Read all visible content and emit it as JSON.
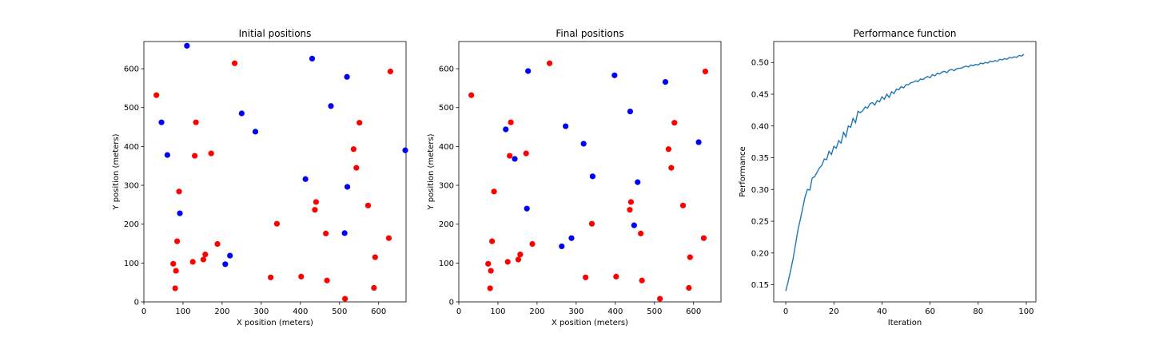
{
  "chart_data": [
    {
      "type": "scatter",
      "title": "Initial positions",
      "xlabel": "X position (meters)",
      "ylabel": "Y position (meters)",
      "xlim": [
        0,
        670
      ],
      "ylim": [
        0,
        670
      ],
      "xticks": [
        0,
        100,
        200,
        300,
        400,
        500,
        600
      ],
      "yticks": [
        0,
        100,
        200,
        300,
        400,
        500,
        600
      ],
      "grid": false,
      "series": [
        {
          "color": "#ff0000",
          "points": [
            [
              32,
              532
            ],
            [
              133,
              462
            ],
            [
              130,
              376
            ],
            [
              172,
              382
            ],
            [
              90,
              284
            ],
            [
              85,
              156
            ],
            [
              75,
              98
            ],
            [
              82,
              80
            ],
            [
              80,
              35
            ],
            [
              125,
              103
            ],
            [
              152,
              109
            ],
            [
              157,
              122
            ],
            [
              188,
              149
            ],
            [
              232,
              614
            ],
            [
              340,
              201
            ],
            [
              324,
              63
            ],
            [
              402,
              65
            ],
            [
              437,
              237
            ],
            [
              440,
              257
            ],
            [
              465,
              176
            ],
            [
              468,
              55
            ],
            [
              514,
              8
            ],
            [
              536,
              393
            ],
            [
              543,
              345
            ],
            [
              551,
              461
            ],
            [
              573,
              248
            ],
            [
              588,
              36
            ],
            [
              591,
              115
            ],
            [
              626,
              164
            ],
            [
              630,
              593
            ]
          ]
        },
        {
          "color": "#0000ff",
          "points": [
            [
              110,
              659
            ],
            [
              45,
              462
            ],
            [
              60,
              378
            ],
            [
              92,
              228
            ],
            [
              208,
              97
            ],
            [
              220,
              119
            ],
            [
              250,
              485
            ],
            [
              285,
              438
            ],
            [
              413,
              316
            ],
            [
              430,
              626
            ],
            [
              478,
              504
            ],
            [
              519,
              579
            ],
            [
              520,
              296
            ],
            [
              513,
              177
            ],
            [
              668,
              390
            ]
          ]
        }
      ]
    },
    {
      "type": "scatter",
      "title": "Final positions",
      "xlabel": "X position (meters)",
      "ylabel": "Y position (meters)",
      "xlim": [
        0,
        670
      ],
      "ylim": [
        0,
        670
      ],
      "xticks": [
        0,
        100,
        200,
        300,
        400,
        500,
        600
      ],
      "yticks": [
        0,
        100,
        200,
        300,
        400,
        500,
        600
      ],
      "grid": false,
      "series": [
        {
          "color": "#ff0000",
          "points": [
            [
              32,
              532
            ],
            [
              133,
              462
            ],
            [
              130,
              376
            ],
            [
              172,
              382
            ],
            [
              90,
              284
            ],
            [
              85,
              156
            ],
            [
              75,
              98
            ],
            [
              82,
              80
            ],
            [
              80,
              35
            ],
            [
              125,
              103
            ],
            [
              152,
              109
            ],
            [
              157,
              122
            ],
            [
              188,
              149
            ],
            [
              232,
              614
            ],
            [
              340,
              201
            ],
            [
              324,
              63
            ],
            [
              402,
              65
            ],
            [
              437,
              237
            ],
            [
              440,
              257
            ],
            [
              465,
              176
            ],
            [
              468,
              55
            ],
            [
              514,
              8
            ],
            [
              536,
              393
            ],
            [
              543,
              345
            ],
            [
              551,
              461
            ],
            [
              573,
              248
            ],
            [
              588,
              36
            ],
            [
              591,
              115
            ],
            [
              626,
              164
            ],
            [
              630,
              593
            ]
          ]
        },
        {
          "color": "#0000ff",
          "points": [
            [
              120,
              444
            ],
            [
              143,
              368
            ],
            [
              174,
              240
            ],
            [
              177,
              594
            ],
            [
              263,
              143
            ],
            [
              273,
              452
            ],
            [
              288,
              164
            ],
            [
              319,
              407
            ],
            [
              342,
              323
            ],
            [
              398,
              583
            ],
            [
              438,
              490
            ],
            [
              448,
              197
            ],
            [
              457,
              308
            ],
            [
              528,
              566
            ],
            [
              613,
              411
            ]
          ]
        }
      ]
    },
    {
      "type": "line",
      "title": "Performance function",
      "xlabel": "Iteration",
      "ylabel": "Performance",
      "xlim": [
        -5,
        104
      ],
      "ylim": [
        0.123,
        0.533
      ],
      "xticks": [
        0,
        20,
        40,
        60,
        80,
        100
      ],
      "yticks": [
        0.15,
        0.2,
        0.25,
        0.3,
        0.35,
        0.4,
        0.45,
        0.5
      ],
      "ytick_labels": [
        "0.15",
        "0.20",
        "0.25",
        "0.30",
        "0.35",
        "0.40",
        "0.45",
        "0.50"
      ],
      "grid": false,
      "series": [
        {
          "color": "#1f77b4",
          "x": [
            0,
            1,
            2,
            3,
            4,
            5,
            6,
            7,
            8,
            9,
            10,
            11,
            12,
            13,
            14,
            15,
            16,
            17,
            18,
            19,
            20,
            21,
            22,
            23,
            24,
            25,
            26,
            27,
            28,
            29,
            30,
            31,
            32,
            33,
            34,
            35,
            36,
            37,
            38,
            39,
            40,
            41,
            42,
            43,
            44,
            45,
            46,
            47,
            48,
            49,
            50,
            51,
            52,
            53,
            54,
            55,
            56,
            57,
            58,
            59,
            60,
            61,
            62,
            63,
            64,
            65,
            66,
            67,
            68,
            69,
            70,
            71,
            72,
            73,
            74,
            75,
            76,
            77,
            78,
            79,
            80,
            81,
            82,
            83,
            84,
            85,
            86,
            87,
            88,
            89,
            90,
            91,
            92,
            93,
            94,
            95,
            96,
            97,
            98,
            99
          ],
          "y": [
            0.14,
            0.155,
            0.172,
            0.19,
            0.212,
            0.235,
            0.252,
            0.27,
            0.288,
            0.3,
            0.299,
            0.318,
            0.32,
            0.327,
            0.334,
            0.338,
            0.348,
            0.347,
            0.36,
            0.355,
            0.368,
            0.365,
            0.377,
            0.373,
            0.39,
            0.383,
            0.4,
            0.398,
            0.412,
            0.405,
            0.423,
            0.421,
            0.424,
            0.43,
            0.428,
            0.435,
            0.437,
            0.433,
            0.44,
            0.438,
            0.446,
            0.442,
            0.45,
            0.445,
            0.454,
            0.451,
            0.458,
            0.457,
            0.462,
            0.46,
            0.465,
            0.465,
            0.468,
            0.469,
            0.471,
            0.47,
            0.474,
            0.473,
            0.476,
            0.478,
            0.476,
            0.481,
            0.479,
            0.483,
            0.482,
            0.485,
            0.486,
            0.484,
            0.488,
            0.489,
            0.487,
            0.49,
            0.491,
            0.491,
            0.493,
            0.494,
            0.493,
            0.496,
            0.495,
            0.497,
            0.496,
            0.499,
            0.498,
            0.5,
            0.499,
            0.502,
            0.501,
            0.503,
            0.502,
            0.505,
            0.504,
            0.506,
            0.505,
            0.508,
            0.507,
            0.509,
            0.508,
            0.511,
            0.51,
            0.513
          ]
        }
      ]
    }
  ]
}
